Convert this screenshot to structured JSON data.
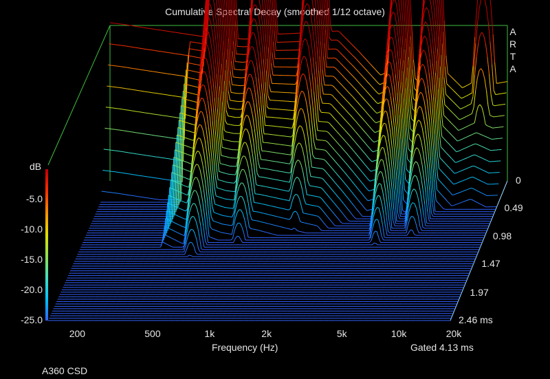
{
  "chart_data": {
    "type": "waterfall",
    "title": "Cumulative Spectral Decay (smoothed 1/12 octave)",
    "xlabel": "Frequency (Hz)",
    "ylabel": "dB",
    "brand": [
      "A",
      "R",
      "T",
      "A"
    ],
    "x_scale": "log",
    "x_range": [
      150,
      20000
    ],
    "x_ticks": [
      {
        "value": 200,
        "label": "200"
      },
      {
        "value": 500,
        "label": "500"
      },
      {
        "value": 1000,
        "label": "1k"
      },
      {
        "value": 2000,
        "label": "2k"
      },
      {
        "value": 5000,
        "label": "5k"
      },
      {
        "value": 10000,
        "label": "10k"
      },
      {
        "value": 20000,
        "label": "20k"
      }
    ],
    "y_range": [
      -25,
      0
    ],
    "y_ticks": [
      {
        "value": -5,
        "label": "-5.0"
      },
      {
        "value": -10,
        "label": "-10.0"
      },
      {
        "value": -15,
        "label": "-15.0"
      },
      {
        "value": -20,
        "label": "-20.0"
      },
      {
        "value": -25,
        "label": "-25.0"
      }
    ],
    "time_range_ms": [
      0,
      2.46
    ],
    "time_ticks": [
      {
        "value": 0,
        "label": "0"
      },
      {
        "value": 0.49,
        "label": "0.49"
      },
      {
        "value": 0.98,
        "label": "0.98"
      },
      {
        "value": 1.47,
        "label": "1.47"
      },
      {
        "value": 1.97,
        "label": "1.97"
      },
      {
        "value": 2.46,
        "label": "2.46 ms"
      }
    ],
    "gated_note": "Gated 4.13 ms",
    "footer": "A360 CSD",
    "slice_count": 60,
    "colormap": [
      "#c00000",
      "#ff3000",
      "#ff9000",
      "#e0e000",
      "#90e050",
      "#40e0c0",
      "#00c0ff",
      "#3060ff"
    ],
    "initial_response_db": [
      {
        "f": 150,
        "db": 0
      },
      {
        "f": 180,
        "db": -0.3
      },
      {
        "f": 230,
        "db": -0.8
      },
      {
        "f": 330,
        "db": -1.5
      },
      {
        "f": 500,
        "db": -2.3
      },
      {
        "f": 800,
        "db": -2.6
      },
      {
        "f": 1200,
        "db": -1.8
      },
      {
        "f": 1700,
        "db": -1.6
      },
      {
        "f": 2500,
        "db": -1.3
      },
      {
        "f": 3200,
        "db": -4.5
      },
      {
        "f": 4200,
        "db": -8.3
      },
      {
        "f": 5500,
        "db": -6.6
      },
      {
        "f": 7000,
        "db": -10.0
      },
      {
        "f": 9000,
        "db": -7.2
      },
      {
        "f": 11500,
        "db": -10.3
      },
      {
        "f": 14500,
        "db": -8.7
      },
      {
        "f": 17500,
        "db": -9.6
      },
      {
        "f": 20000,
        "db": -9.3
      }
    ],
    "resonances": [
      {
        "f": 600,
        "peak_db": -2.5,
        "decay_ms": 2.1
      },
      {
        "f": 1000,
        "peak_db": -8.0,
        "decay_ms": 1.8
      },
      {
        "f": 1900,
        "peak_db": -5.0,
        "decay_ms": 1.4
      },
      {
        "f": 5400,
        "peak_db": -8.5,
        "decay_ms": 2.1
      },
      {
        "f": 8000,
        "peak_db": -7.0,
        "decay_ms": 1.8
      },
      {
        "f": 15000,
        "peak_db": -12.0,
        "decay_ms": 0.5
      }
    ]
  }
}
